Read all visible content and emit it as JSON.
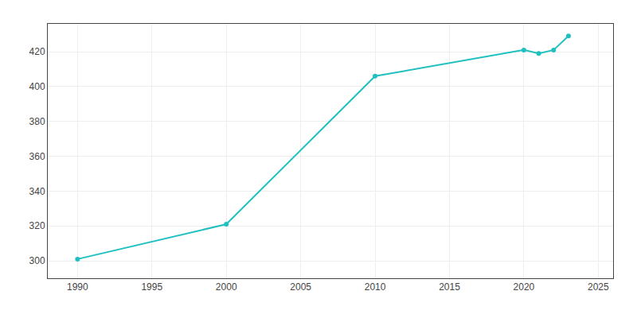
{
  "chart_data": {
    "type": "line",
    "x": [
      1990,
      2000,
      2010,
      2020,
      2021,
      2022,
      2023
    ],
    "values": [
      301,
      321,
      406,
      421,
      419,
      421,
      429
    ],
    "color": "#20c0c0",
    "marker": "circle",
    "xlim": [
      1988,
      2026
    ],
    "ylim": [
      290,
      436
    ],
    "xticks": [
      1990,
      1995,
      2000,
      2005,
      2010,
      2015,
      2020,
      2025
    ],
    "yticks": [
      300,
      320,
      340,
      360,
      380,
      400,
      420
    ],
    "grid": true
  }
}
